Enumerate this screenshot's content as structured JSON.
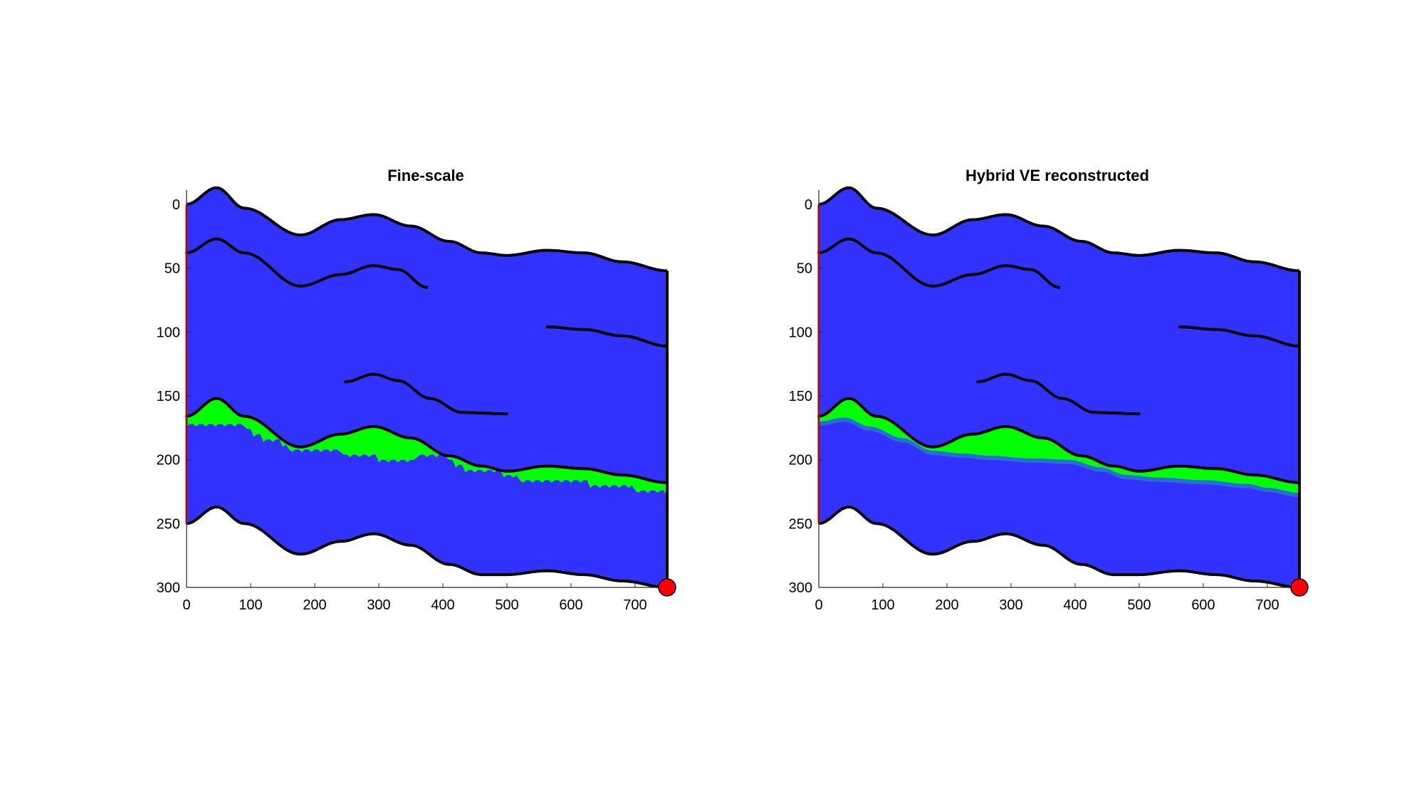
{
  "colors": {
    "background": "#ffffff",
    "rock": "#3232ff",
    "co2": "#00ff00",
    "co2_transition": "#1aa0b4",
    "boundary": "#000000",
    "injection_side": "#ff0000",
    "well_marker": "#ff0000"
  },
  "chart_data": [
    {
      "type": "area",
      "title": "Fine-scale",
      "xlabel": "",
      "ylabel": "",
      "xlim": [
        0,
        750
      ],
      "ylim": [
        0,
        300
      ],
      "y_reversed": true,
      "x_ticks": [
        0,
        100,
        200,
        300,
        400,
        500,
        600,
        700
      ],
      "y_ticks": [
        0,
        50,
        100,
        150,
        200,
        250,
        300
      ],
      "grid": false,
      "co2_plume_style": "sharp",
      "top_boundary": [
        [
          0,
          0
        ],
        [
          47,
          -13
        ],
        [
          90,
          3
        ],
        [
          178,
          24
        ],
        [
          240,
          12
        ],
        [
          292,
          8
        ],
        [
          350,
          17
        ],
        [
          410,
          29
        ],
        [
          460,
          38
        ],
        [
          500,
          40
        ],
        [
          562,
          36
        ],
        [
          620,
          38
        ],
        [
          680,
          45
        ],
        [
          750,
          52
        ]
      ],
      "bottom_boundary": [
        [
          0,
          250
        ],
        [
          47,
          237
        ],
        [
          90,
          250
        ],
        [
          178,
          274
        ],
        [
          240,
          264
        ],
        [
          292,
          258
        ],
        [
          350,
          267
        ],
        [
          410,
          282
        ],
        [
          460,
          290
        ],
        [
          500,
          290
        ],
        [
          562,
          287
        ],
        [
          620,
          290
        ],
        [
          680,
          295
        ],
        [
          750,
          300
        ]
      ],
      "internal_layers": [
        [
          [
            0,
            38
          ],
          [
            47,
            27
          ],
          [
            90,
            38
          ],
          [
            178,
            64
          ],
          [
            240,
            55
          ],
          [
            292,
            48
          ],
          [
            330,
            51
          ],
          [
            375,
            65
          ]
        ],
        [
          [
            563,
            96
          ],
          [
            620,
            98
          ],
          [
            680,
            103
          ],
          [
            750,
            111
          ]
        ],
        [
          [
            248,
            139
          ],
          [
            292,
            133
          ],
          [
            330,
            138
          ],
          [
            380,
            152
          ],
          [
            430,
            163
          ],
          [
            500,
            164
          ]
        ],
        [
          [
            0,
            166
          ],
          [
            47,
            152
          ],
          [
            90,
            166
          ],
          [
            178,
            190
          ],
          [
            240,
            180
          ],
          [
            292,
            174
          ],
          [
            350,
            183
          ],
          [
            410,
            197
          ],
          [
            460,
            205
          ],
          [
            500,
            209
          ],
          [
            562,
            205
          ],
          [
            620,
            207
          ],
          [
            680,
            212
          ],
          [
            750,
            218
          ]
        ]
      ],
      "co2_extents": [
        [
          0,
          172
        ],
        [
          40,
          170
        ],
        [
          80,
          173
        ],
        [
          130,
          183
        ],
        [
          178,
          194
        ],
        [
          220,
          192
        ],
        [
          270,
          196
        ],
        [
          330,
          200
        ],
        [
          390,
          195
        ],
        [
          440,
          207
        ],
        [
          480,
          209
        ],
        [
          530,
          215
        ],
        [
          600,
          216
        ],
        [
          660,
          220
        ],
        [
          700,
          222
        ],
        [
          750,
          226
        ]
      ],
      "well": [
        750,
        300
      ]
    },
    {
      "type": "area",
      "title": "Hybrid VE reconstructed",
      "xlabel": "",
      "ylabel": "",
      "xlim": [
        0,
        750
      ],
      "ylim": [
        0,
        300
      ],
      "y_reversed": true,
      "x_ticks": [
        0,
        100,
        200,
        300,
        400,
        500,
        600,
        700
      ],
      "y_ticks": [
        0,
        50,
        100,
        150,
        200,
        250,
        300
      ],
      "grid": false,
      "co2_plume_style": "smeared",
      "top_boundary": [
        [
          0,
          0
        ],
        [
          47,
          -13
        ],
        [
          90,
          3
        ],
        [
          178,
          24
        ],
        [
          240,
          12
        ],
        [
          292,
          8
        ],
        [
          350,
          17
        ],
        [
          410,
          29
        ],
        [
          460,
          38
        ],
        [
          500,
          40
        ],
        [
          562,
          36
        ],
        [
          620,
          38
        ],
        [
          680,
          45
        ],
        [
          750,
          52
        ]
      ],
      "bottom_boundary": [
        [
          0,
          250
        ],
        [
          47,
          237
        ],
        [
          90,
          250
        ],
        [
          178,
          274
        ],
        [
          240,
          264
        ],
        [
          292,
          258
        ],
        [
          350,
          267
        ],
        [
          410,
          282
        ],
        [
          460,
          290
        ],
        [
          500,
          290
        ],
        [
          562,
          287
        ],
        [
          620,
          290
        ],
        [
          680,
          295
        ],
        [
          750,
          300
        ]
      ],
      "internal_layers": [
        [
          [
            0,
            38
          ],
          [
            47,
            27
          ],
          [
            90,
            38
          ],
          [
            178,
            64
          ],
          [
            240,
            55
          ],
          [
            292,
            48
          ],
          [
            330,
            51
          ],
          [
            375,
            65
          ]
        ],
        [
          [
            563,
            96
          ],
          [
            620,
            98
          ],
          [
            680,
            103
          ],
          [
            750,
            111
          ]
        ],
        [
          [
            248,
            139
          ],
          [
            292,
            133
          ],
          [
            330,
            138
          ],
          [
            380,
            152
          ],
          [
            430,
            163
          ],
          [
            500,
            164
          ]
        ],
        [
          [
            0,
            166
          ],
          [
            47,
            152
          ],
          [
            90,
            166
          ],
          [
            178,
            190
          ],
          [
            240,
            180
          ],
          [
            292,
            174
          ],
          [
            350,
            183
          ],
          [
            410,
            197
          ],
          [
            460,
            205
          ],
          [
            500,
            209
          ],
          [
            562,
            205
          ],
          [
            620,
            207
          ],
          [
            680,
            212
          ],
          [
            750,
            218
          ]
        ]
      ],
      "co2_extents": [
        [
          0,
          170
        ],
        [
          40,
          167
        ],
        [
          80,
          174
        ],
        [
          130,
          183
        ],
        [
          178,
          193
        ],
        [
          220,
          195
        ],
        [
          270,
          197
        ],
        [
          330,
          199
        ],
        [
          390,
          200
        ],
        [
          440,
          206
        ],
        [
          480,
          212
        ],
        [
          530,
          214
        ],
        [
          600,
          216
        ],
        [
          670,
          219
        ],
        [
          700,
          222
        ],
        [
          750,
          226
        ]
      ],
      "well": [
        750,
        300
      ]
    }
  ]
}
